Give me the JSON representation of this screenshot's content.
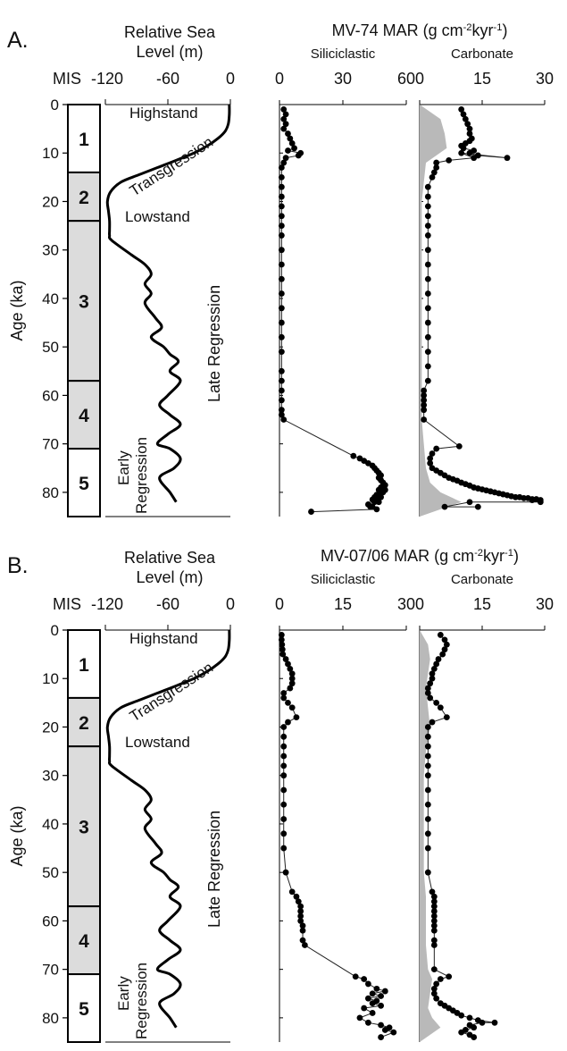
{
  "chart_data": [
    {
      "panel": "A.",
      "stage_axis": {
        "ylabel": "Age (ka)",
        "ylim": [
          0,
          85
        ],
        "yticks": [
          0,
          10,
          20,
          30,
          40,
          50,
          60,
          70,
          80
        ],
        "header": "MIS",
        "stages": [
          {
            "label": "1",
            "from": 0,
            "to": 14,
            "shaded": false
          },
          {
            "label": "2",
            "from": 14,
            "to": 24,
            "shaded": true
          },
          {
            "label": "3",
            "from": 24,
            "to": 57,
            "shaded": true
          },
          {
            "label": "4",
            "from": 57,
            "to": 71,
            "shaded": true
          },
          {
            "label": "5",
            "from": 71,
            "to": 85,
            "shaded": false
          }
        ]
      },
      "sea_level": {
        "type": "line",
        "title": "Relative Sea Level (m)",
        "title_lines": [
          "Relative Sea",
          "Level (m)"
        ],
        "xlim": [
          -120,
          0
        ],
        "xticks": [
          "-120",
          "-60",
          "0"
        ],
        "x": [
          -1,
          -1,
          -2,
          -5,
          -12,
          -22,
          -35,
          -52,
          -70,
          -88,
          -105,
          -115,
          -118,
          -117,
          -116,
          -116,
          -116,
          -114,
          -95,
          -82,
          -76,
          -82,
          -76,
          -82,
          -72,
          -66,
          -76,
          -64,
          -58,
          -50,
          -58,
          -48,
          -60,
          -68,
          -58,
          -48,
          -60,
          -70,
          -58,
          -48,
          -54,
          -68,
          -58,
          -52
        ],
        "y": [
          0,
          2,
          4,
          5.5,
          7,
          8.5,
          10,
          11.5,
          13,
          14.5,
          16,
          18,
          20,
          22,
          24,
          26,
          27,
          28,
          31,
          33,
          35,
          37,
          39,
          41,
          44,
          46,
          48,
          50,
          51.5,
          53,
          55,
          57,
          60,
          62,
          64,
          66,
          68,
          70,
          71,
          73,
          75,
          77,
          80,
          82
        ],
        "annotations": [
          "Highstand",
          "Transgression",
          "Lowstand",
          "Late Regression",
          "Early",
          "Regression"
        ]
      },
      "mar_title": "MV-74 MAR (g cm⁻²kyr⁻¹)",
      "siliciclastic": {
        "type": "line",
        "title": "Siliciclastic",
        "xlim": [
          0,
          60
        ],
        "xticks": [
          "0",
          "30",
          "60"
        ],
        "x": [
          2,
          3,
          2,
          3,
          2,
          4,
          5,
          6,
          7,
          4,
          10,
          9,
          3,
          2,
          1,
          1,
          1,
          1,
          1,
          1,
          1,
          1,
          1,
          1,
          1,
          1,
          1,
          1,
          1,
          1,
          1,
          1,
          1,
          1,
          1,
          1,
          2,
          35,
          38,
          40,
          42,
          44,
          45,
          46,
          47,
          48,
          47,
          48,
          49,
          50,
          49,
          48,
          50,
          47,
          48,
          49,
          46,
          47,
          48,
          45,
          46,
          44,
          47,
          45,
          42,
          43,
          44,
          46,
          15
        ],
        "y": [
          1,
          2,
          3,
          4,
          5,
          6,
          7,
          8,
          9,
          9.5,
          10,
          10.5,
          11,
          12,
          13,
          15,
          17,
          19,
          21,
          23,
          25,
          27,
          30,
          33,
          36,
          39,
          42,
          45,
          48,
          51,
          55,
          57,
          59,
          61,
          63,
          64,
          65,
          72.5,
          73,
          73.5,
          74,
          74.5,
          75,
          75.5,
          76,
          76.5,
          77,
          77.5,
          78,
          78.5,
          79,
          79,
          79.5,
          79.5,
          80,
          80,
          80.5,
          80.5,
          81,
          81,
          81.5,
          81.5,
          82,
          82,
          82.5,
          83,
          83,
          83.5,
          84
        ]
      },
      "carbonate": {
        "type": "line",
        "title": "Carbonate",
        "xlim": [
          0,
          30
        ],
        "xticks": [
          "0",
          "15",
          "30"
        ],
        "x": [
          10,
          10.5,
          11,
          11.5,
          12,
          12,
          12.5,
          12,
          11,
          10,
          10.5,
          13,
          12,
          14,
          21,
          10,
          13,
          7,
          4,
          4,
          3.5,
          3,
          2,
          2,
          2,
          2,
          2,
          2,
          2,
          2,
          2,
          2,
          2,
          2,
          2,
          2,
          2,
          2,
          1,
          1,
          1,
          1,
          1,
          1,
          9.5,
          4,
          3,
          2.5,
          2.5,
          3,
          4,
          5,
          6,
          7,
          8,
          9,
          10,
          11,
          12,
          13,
          14,
          15,
          16,
          17,
          18,
          19,
          20,
          21,
          22,
          23,
          24,
          25,
          26,
          27,
          28,
          29,
          27,
          29,
          12,
          6,
          14
        ],
        "y": [
          1,
          2,
          3,
          4,
          5,
          6,
          7,
          7.5,
          8,
          8.5,
          9,
          9.5,
          10,
          10.5,
          11,
          10,
          11,
          11.5,
          12,
          13,
          14,
          15,
          17,
          19,
          21,
          23,
          25,
          27,
          30,
          33,
          36,
          39,
          42,
          45,
          48,
          51,
          54,
          57,
          59,
          60,
          61,
          62,
          63,
          65,
          70.5,
          71,
          72,
          73,
          74,
          75,
          75.5,
          76,
          76.5,
          77,
          77.3,
          77.6,
          78,
          78.3,
          78.6,
          79,
          79.2,
          79.4,
          79.6,
          79.8,
          80,
          80.2,
          80.4,
          80.6,
          80.8,
          81,
          81,
          81.2,
          81.2,
          81.4,
          81.4,
          81.6,
          81.6,
          82,
          82,
          83,
          83
        ],
        "shaded_envelope": {
          "y": [
            0,
            3,
            6,
            9,
            12,
            20,
            30,
            40,
            50,
            60,
            65,
            70,
            75,
            78,
            80,
            82,
            85
          ],
          "x": [
            0,
            5,
            6,
            6.5,
            1.5,
            0.5,
            0.5,
            0.5,
            0.5,
            0.5,
            0.5,
            1,
            1.5,
            2.5,
            5,
            10,
            0
          ]
        }
      }
    },
    {
      "panel": "B.",
      "stage_axis": {
        "ylabel": "Age (ka)",
        "ylim": [
          0,
          85
        ],
        "yticks": [
          0,
          10,
          20,
          30,
          40,
          50,
          60,
          70,
          80
        ],
        "header": "MIS",
        "stages": [
          {
            "label": "1",
            "from": 0,
            "to": 14,
            "shaded": false
          },
          {
            "label": "2",
            "from": 14,
            "to": 24,
            "shaded": true
          },
          {
            "label": "3",
            "from": 24,
            "to": 57,
            "shaded": true
          },
          {
            "label": "4",
            "from": 57,
            "to": 71,
            "shaded": true
          },
          {
            "label": "5",
            "from": 71,
            "to": 85,
            "shaded": false
          }
        ]
      },
      "sea_level": {
        "type": "line",
        "title": "Relative Sea Level (m)",
        "title_lines": [
          "Relative Sea",
          "Level (m)"
        ],
        "xlim": [
          -120,
          0
        ],
        "xticks": [
          "-120",
          "-60",
          "0"
        ],
        "x": [
          -1,
          -1,
          -2,
          -5,
          -12,
          -22,
          -35,
          -52,
          -70,
          -88,
          -105,
          -115,
          -118,
          -117,
          -116,
          -116,
          -116,
          -114,
          -95,
          -82,
          -76,
          -82,
          -76,
          -82,
          -72,
          -66,
          -76,
          -64,
          -58,
          -50,
          -58,
          -48,
          -60,
          -68,
          -58,
          -48,
          -60,
          -70,
          -58,
          -48,
          -54,
          -68,
          -58,
          -52
        ],
        "y": [
          0,
          2,
          4,
          5.5,
          7,
          8.5,
          10,
          11.5,
          13,
          14.5,
          16,
          18,
          20,
          22,
          24,
          26,
          27,
          28,
          31,
          33,
          35,
          37,
          39,
          41,
          44,
          46,
          48,
          50,
          51.5,
          53,
          55,
          57,
          60,
          62,
          64,
          66,
          68,
          70,
          71,
          73,
          75,
          77,
          80,
          82
        ],
        "annotations": [
          "Highstand",
          "Transgression",
          "Lowstand",
          "Late Regression",
          "Early",
          "Regression"
        ]
      },
      "mar_title": "MV-07/06 MAR (g cm⁻²kyr⁻¹)",
      "siliciclastic": {
        "type": "line",
        "title": "Siliciclastic",
        "xlim": [
          0,
          30
        ],
        "xticks": [
          "0",
          "15",
          "30"
        ],
        "x": [
          0.5,
          0.5,
          0.6,
          0.7,
          0.8,
          1.5,
          2,
          2.5,
          3,
          3,
          3,
          2.5,
          1,
          1,
          2,
          3,
          4,
          2,
          1,
          1,
          1,
          1,
          1,
          1,
          1,
          1,
          1,
          1,
          1,
          1.5,
          3,
          4,
          4.5,
          5,
          5,
          5,
          5,
          5.5,
          5.5,
          5.5,
          6,
          18,
          20,
          21,
          23,
          25,
          22,
          24,
          21,
          23,
          22,
          24,
          20,
          22,
          19,
          21,
          24,
          26,
          25,
          27,
          24
        ],
        "y": [
          1,
          2,
          3,
          4,
          5,
          6,
          7,
          8,
          9,
          10,
          11,
          12,
          13,
          14,
          15,
          16,
          18,
          19,
          20,
          22,
          24,
          26,
          28,
          30,
          33,
          36,
          39,
          42,
          45,
          50,
          54,
          55,
          56,
          57,
          58,
          59,
          60,
          61,
          62,
          64,
          65,
          71.5,
          72,
          73,
          74,
          74.5,
          75,
          75.5,
          76,
          76.5,
          77,
          77.5,
          78,
          79,
          80,
          81,
          81.5,
          82,
          82.5,
          83,
          84
        ]
      },
      "carbonate": {
        "type": "line",
        "title": "Carbonate",
        "xlim": [
          0,
          30
        ],
        "xticks": [
          "0",
          "15",
          "30"
        ],
        "x": [
          5,
          6,
          6.5,
          6,
          5.5,
          4.5,
          4,
          3.5,
          3,
          3,
          2.5,
          2,
          2,
          2.5,
          4,
          5,
          6.5,
          3,
          2,
          2,
          2,
          2,
          2,
          2,
          2,
          2,
          2,
          2,
          2,
          2,
          3,
          3.5,
          3.5,
          3.5,
          3.5,
          3.5,
          3.5,
          3.5,
          3.5,
          3.5,
          3.5,
          3.5,
          7,
          5,
          4,
          3.5,
          3.5,
          4,
          5,
          6,
          7,
          8,
          9,
          10,
          12,
          14,
          18,
          15,
          12,
          13,
          11,
          10,
          12,
          13
        ],
        "y": [
          1,
          2,
          3,
          4,
          5,
          6,
          7,
          8,
          9,
          10,
          11,
          12,
          13,
          14,
          15,
          16,
          18,
          19,
          20,
          22,
          24,
          26,
          28,
          30,
          33,
          36,
          39,
          42,
          45,
          50,
          54,
          55,
          56,
          57,
          58,
          59,
          60,
          61,
          62,
          64,
          65,
          70,
          71.5,
          72,
          73,
          74,
          75,
          76,
          77,
          77.5,
          78,
          78.5,
          79,
          79.5,
          80,
          80.5,
          81,
          81,
          81.5,
          82,
          82.5,
          83,
          83.5,
          84
        ],
        "shaded_envelope": {
          "y": [
            0,
            3,
            6,
            9,
            12,
            16,
            20,
            25,
            30,
            40,
            50,
            55,
            60,
            65,
            70,
            72,
            75,
            78,
            80,
            82,
            85
          ],
          "x": [
            0,
            2,
            2.5,
            2,
            1.5,
            2,
            2.5,
            1.5,
            1,
            1,
            1,
            1.5,
            1.5,
            1.5,
            2,
            3,
            2.5,
            2,
            3,
            5,
            0
          ]
        }
      }
    }
  ]
}
